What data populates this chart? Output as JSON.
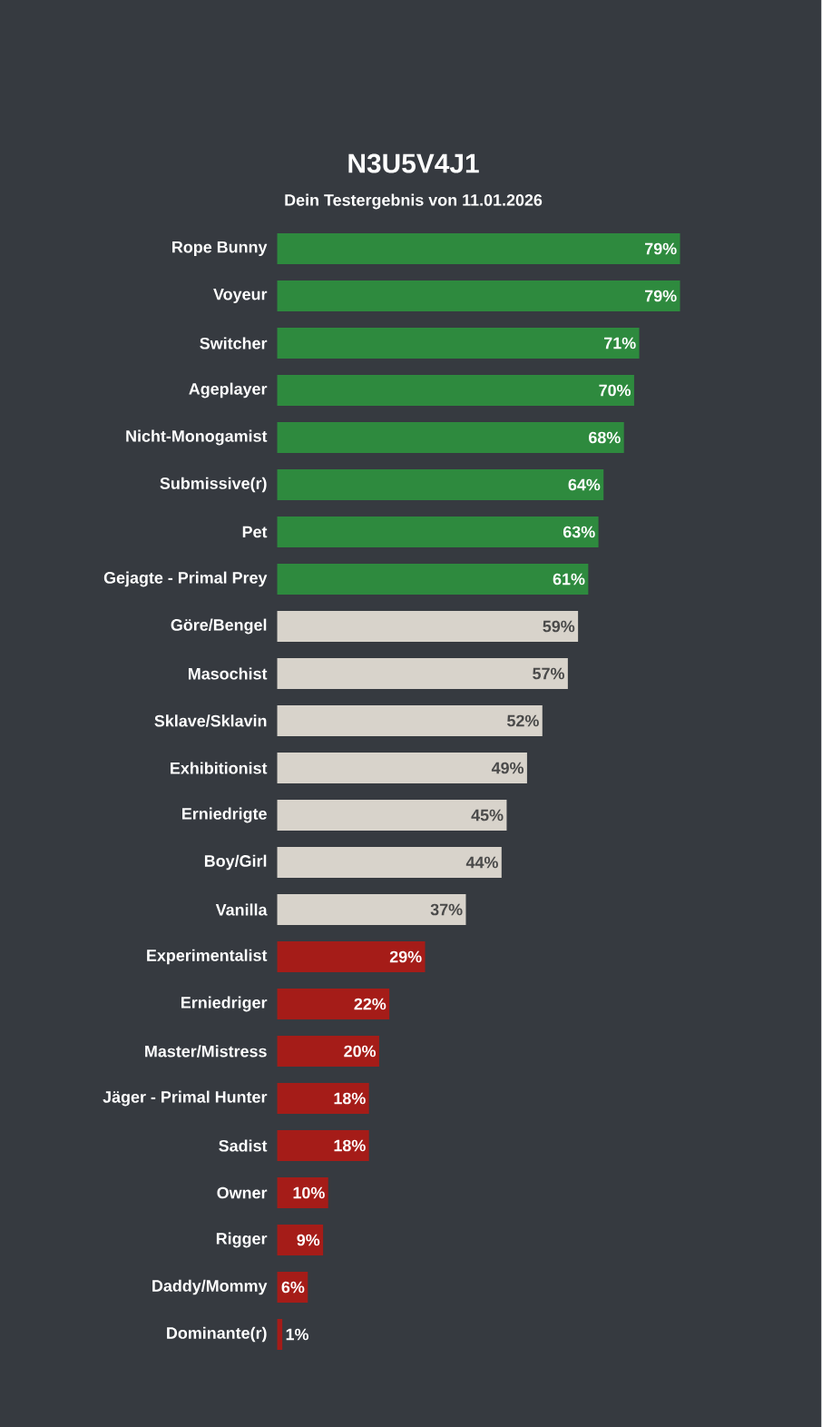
{
  "chart_data": {
    "type": "bar",
    "orientation": "horizontal",
    "title": "N3U5V4J1",
    "subtitle": "Dein Testergebnis von 11.01.2026",
    "categories": [
      "Rope Bunny",
      "Voyeur",
      "Switcher",
      "Ageplayer",
      "Nicht-Monogamist",
      "Submissive(r)",
      "Pet",
      "Gejagte - Primal Prey",
      "Göre/Bengel",
      "Masochist",
      "Sklave/Sklavin",
      "Exhibitionist",
      "Erniedrigte",
      "Boy/Girl",
      "Vanilla",
      "Experimentalist",
      "Erniedriger",
      "Master/Mistress",
      "Jäger - Primal Hunter",
      "Sadist",
      "Owner",
      "Rigger",
      "Daddy/Mommy",
      "Dominante(r)"
    ],
    "values": [
      79,
      79,
      71,
      70,
      68,
      64,
      63,
      61,
      59,
      57,
      52,
      49,
      45,
      44,
      37,
      29,
      22,
      20,
      18,
      18,
      10,
      9,
      6,
      1
    ],
    "value_labels": [
      "79%",
      "79%",
      "71%",
      "70%",
      "68%",
      "64%",
      "63%",
      "61%",
      "59%",
      "57%",
      "52%",
      "49%",
      "45%",
      "44%",
      "37%",
      "29%",
      "22%",
      "20%",
      "18%",
      "18%",
      "10%",
      "9%",
      "6%",
      "1%"
    ],
    "colors": [
      "#2e8a3e",
      "#2e8a3e",
      "#2e8a3e",
      "#2e8a3e",
      "#2e8a3e",
      "#2e8a3e",
      "#2e8a3e",
      "#2e8a3e",
      "#d8d3cb",
      "#d8d3cb",
      "#d8d3cb",
      "#d8d3cb",
      "#d8d3cb",
      "#d8d3cb",
      "#d8d3cb",
      "#a51c18",
      "#a51c18",
      "#a51c18",
      "#a51c18",
      "#a51c18",
      "#a51c18",
      "#a51c18",
      "#a51c18",
      "#a51c18"
    ],
    "tick_labels": "y"
  }
}
